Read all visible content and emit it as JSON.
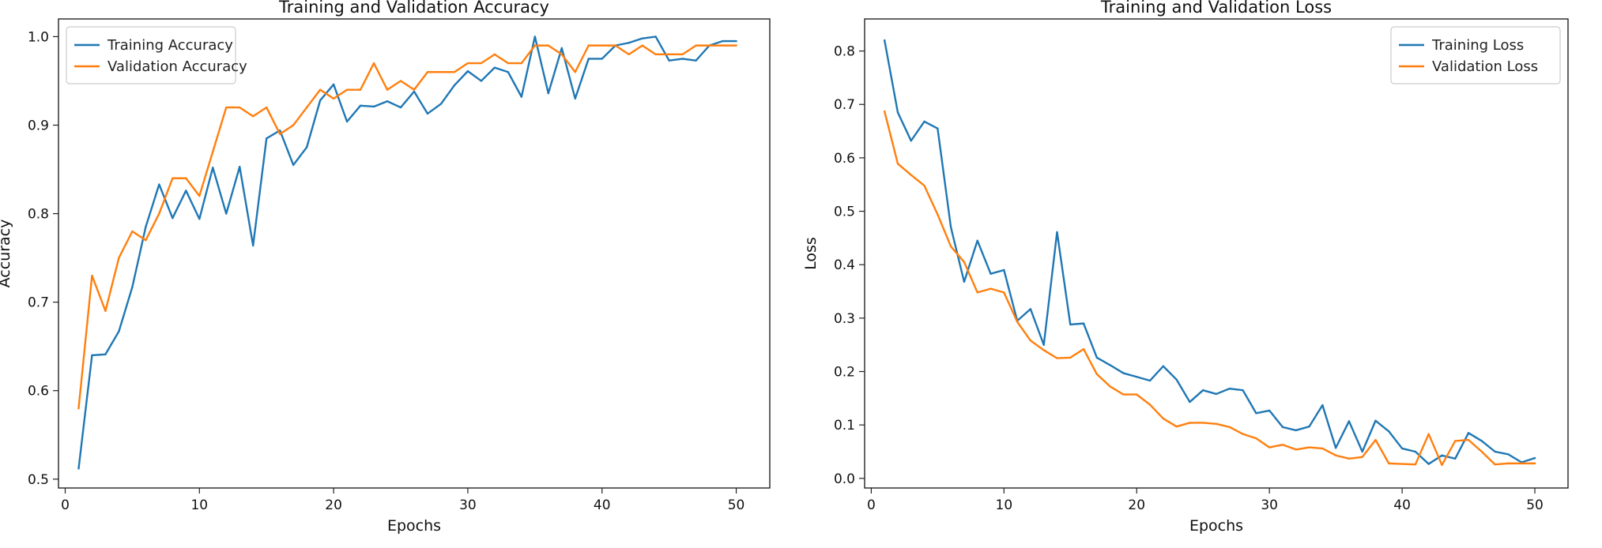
{
  "chart_data": [
    {
      "type": "line",
      "title": "Training and Validation Accuracy",
      "xlabel": "Epochs",
      "ylabel": "Accuracy",
      "xlim": [
        -0.5,
        52.5
      ],
      "ylim": [
        0.49,
        1.02
      ],
      "xticks": [
        0,
        10,
        20,
        30,
        40,
        50
      ],
      "yticks": [
        0.5,
        0.6,
        0.7,
        0.8,
        0.9,
        1.0
      ],
      "ytick_labels": [
        "0.5",
        "0.6",
        "0.7",
        "0.8",
        "0.9",
        "1.0"
      ],
      "legend_position": "top-left",
      "x": [
        1,
        2,
        3,
        4,
        5,
        6,
        7,
        8,
        9,
        10,
        11,
        12,
        13,
        14,
        15,
        16,
        17,
        18,
        19,
        20,
        21,
        22,
        23,
        24,
        25,
        26,
        27,
        28,
        29,
        30,
        31,
        32,
        33,
        34,
        35,
        36,
        37,
        38,
        39,
        40,
        41,
        42,
        43,
        44,
        45,
        46,
        47,
        48,
        49,
        50
      ],
      "series": [
        {
          "name": "Training Accuracy",
          "color": "#1f77b4",
          "values": [
            0.512,
            0.64,
            0.641,
            0.667,
            0.717,
            0.785,
            0.833,
            0.795,
            0.826,
            0.794,
            0.852,
            0.8,
            0.853,
            0.764,
            0.885,
            0.894,
            0.855,
            0.875,
            0.928,
            0.946,
            0.904,
            0.922,
            0.921,
            0.927,
            0.92,
            0.938,
            0.913,
            0.924,
            0.945,
            0.961,
            0.95,
            0.965,
            0.96,
            0.932,
            1.0,
            0.936,
            0.987,
            0.93,
            0.975,
            0.975,
            0.99,
            0.993,
            0.998,
            1.0,
            0.973,
            0.975,
            0.973,
            0.99,
            0.995,
            0.995
          ]
        },
        {
          "name": "Validation Accuracy",
          "color": "#ff7f0e",
          "values": [
            0.58,
            0.73,
            0.69,
            0.75,
            0.78,
            0.77,
            0.8,
            0.84,
            0.84,
            0.82,
            0.87,
            0.92,
            0.92,
            0.91,
            0.92,
            0.89,
            0.9,
            0.92,
            0.94,
            0.93,
            0.94,
            0.94,
            0.97,
            0.94,
            0.95,
            0.94,
            0.96,
            0.96,
            0.96,
            0.97,
            0.97,
            0.98,
            0.97,
            0.97,
            0.99,
            0.99,
            0.98,
            0.96,
            0.99,
            0.99,
            0.99,
            0.98,
            0.99,
            0.98,
            0.98,
            0.98,
            0.99,
            0.99,
            0.99,
            0.99
          ]
        }
      ]
    },
    {
      "type": "line",
      "title": "Training and Validation Loss",
      "xlabel": "Epochs",
      "ylabel": "Loss",
      "xlim": [
        -0.5,
        52.5
      ],
      "ylim": [
        -0.018,
        0.86
      ],
      "xticks": [
        0,
        10,
        20,
        30,
        40,
        50
      ],
      "yticks": [
        0.0,
        0.1,
        0.2,
        0.3,
        0.4,
        0.5,
        0.6,
        0.7,
        0.8
      ],
      "ytick_labels": [
        "0.0",
        "0.1",
        "0.2",
        "0.3",
        "0.4",
        "0.5",
        "0.6",
        "0.7",
        "0.8"
      ],
      "legend_position": "top-right",
      "x": [
        1,
        2,
        3,
        4,
        5,
        6,
        7,
        8,
        9,
        10,
        11,
        12,
        13,
        14,
        15,
        16,
        17,
        18,
        19,
        20,
        21,
        22,
        23,
        24,
        25,
        26,
        27,
        28,
        29,
        30,
        31,
        32,
        33,
        34,
        35,
        36,
        37,
        38,
        39,
        40,
        41,
        42,
        43,
        44,
        45,
        46,
        47,
        48,
        49,
        50
      ],
      "series": [
        {
          "name": "Training Loss",
          "color": "#1f77b4",
          "values": [
            0.82,
            0.685,
            0.632,
            0.668,
            0.655,
            0.47,
            0.368,
            0.445,
            0.383,
            0.39,
            0.295,
            0.317,
            0.25,
            0.461,
            0.288,
            0.29,
            0.226,
            0.212,
            0.197,
            0.19,
            0.183,
            0.21,
            0.185,
            0.143,
            0.165,
            0.158,
            0.168,
            0.165,
            0.122,
            0.127,
            0.096,
            0.09,
            0.097,
            0.137,
            0.057,
            0.107,
            0.05,
            0.108,
            0.088,
            0.056,
            0.05,
            0.027,
            0.043,
            0.037,
            0.085,
            0.07,
            0.05,
            0.045,
            0.03,
            0.038
          ]
        },
        {
          "name": "Validation Loss",
          "color": "#ff7f0e",
          "values": [
            0.687,
            0.589,
            0.568,
            0.548,
            0.494,
            0.434,
            0.405,
            0.348,
            0.355,
            0.348,
            0.293,
            0.258,
            0.24,
            0.225,
            0.226,
            0.242,
            0.195,
            0.172,
            0.157,
            0.157,
            0.138,
            0.112,
            0.097,
            0.104,
            0.104,
            0.102,
            0.096,
            0.083,
            0.075,
            0.058,
            0.063,
            0.054,
            0.058,
            0.056,
            0.043,
            0.037,
            0.04,
            0.072,
            0.028,
            0.027,
            0.026,
            0.083,
            0.025,
            0.07,
            0.072,
            0.05,
            0.026,
            0.028,
            0.028,
            0.028
          ]
        }
      ]
    }
  ]
}
